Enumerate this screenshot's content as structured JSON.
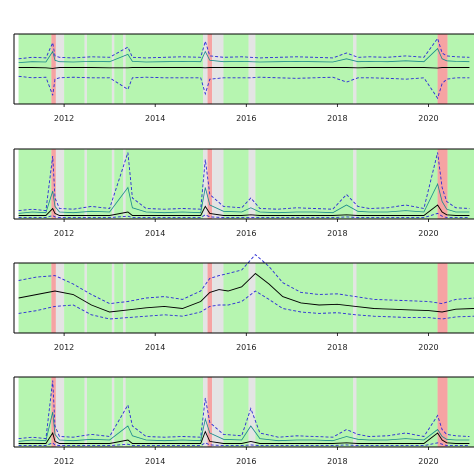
{
  "chart_data": {
    "type": "line",
    "xlim": [
      2010.9,
      2021.0
    ],
    "xticks": [
      "2012",
      "2014",
      "2016",
      "2018",
      "2020"
    ],
    "xtick_values": [
      2012,
      2014,
      2016,
      2018,
      2020
    ],
    "colors": {
      "regime_normal": "#b6f5b0",
      "regime_stress": "#f6a3a3",
      "regime_neutral": "#e4e4e4",
      "median_line": "#000000",
      "upper_band": "#2b2bd6",
      "lower_band": "#2b2bd6",
      "extra_band": "#1a8a8a",
      "frame": "#000000"
    },
    "regimes": [
      {
        "start": 2011.0,
        "end": 2011.72,
        "state": "normal"
      },
      {
        "start": 2011.72,
        "end": 2011.82,
        "state": "stress"
      },
      {
        "start": 2011.82,
        "end": 2012.0,
        "state": "neutral"
      },
      {
        "start": 2012.0,
        "end": 2012.45,
        "state": "normal"
      },
      {
        "start": 2012.45,
        "end": 2012.5,
        "state": "neutral"
      },
      {
        "start": 2012.5,
        "end": 2013.05,
        "state": "normal"
      },
      {
        "start": 2013.05,
        "end": 2013.1,
        "state": "neutral"
      },
      {
        "start": 2013.1,
        "end": 2013.3,
        "state": "normal"
      },
      {
        "start": 2013.3,
        "end": 2013.35,
        "state": "neutral"
      },
      {
        "start": 2013.35,
        "end": 2015.05,
        "state": "normal"
      },
      {
        "start": 2015.05,
        "end": 2015.15,
        "state": "neutral"
      },
      {
        "start": 2015.15,
        "end": 2015.25,
        "state": "stress"
      },
      {
        "start": 2015.25,
        "end": 2015.5,
        "state": "neutral"
      },
      {
        "start": 2015.5,
        "end": 2016.05,
        "state": "normal"
      },
      {
        "start": 2016.05,
        "end": 2016.2,
        "state": "neutral"
      },
      {
        "start": 2016.2,
        "end": 2018.35,
        "state": "normal"
      },
      {
        "start": 2018.35,
        "end": 2018.42,
        "state": "neutral"
      },
      {
        "start": 2018.42,
        "end": 2020.2,
        "state": "normal"
      },
      {
        "start": 2020.2,
        "end": 2020.42,
        "state": "stress"
      },
      {
        "start": 2020.42,
        "end": 2021.0,
        "state": "normal"
      }
    ],
    "panels": [
      {
        "ylim": [
          -1.2,
          1.2
        ],
        "x": [
          2011.0,
          2011.3,
          2011.6,
          2011.75,
          2011.8,
          2011.9,
          2012.2,
          2012.6,
          2013.0,
          2013.4,
          2013.5,
          2013.8,
          2014.2,
          2014.6,
          2015.0,
          2015.1,
          2015.2,
          2015.5,
          2015.9,
          2016.1,
          2016.3,
          2016.7,
          2017.1,
          2017.5,
          2017.9,
          2018.2,
          2018.45,
          2018.7,
          2019.1,
          2019.5,
          2019.9,
          2020.2,
          2020.3,
          2020.4,
          2020.6,
          2020.9
        ],
        "median": [
          0.05,
          0.05,
          0.04,
          0.02,
          0.03,
          0.05,
          0.05,
          0.05,
          0.04,
          0.04,
          0.05,
          0.05,
          0.05,
          0.05,
          0.05,
          0.04,
          0.05,
          0.05,
          0.05,
          0.05,
          0.05,
          0.05,
          0.05,
          0.05,
          0.05,
          0.05,
          0.04,
          0.05,
          0.05,
          0.05,
          0.05,
          0.03,
          0.05,
          0.05,
          0.05,
          0.05
        ],
        "upper": [
          0.35,
          0.4,
          0.38,
          0.9,
          0.45,
          0.4,
          0.38,
          0.42,
          0.4,
          0.75,
          0.4,
          0.38,
          0.4,
          0.42,
          0.4,
          0.95,
          0.45,
          0.4,
          0.42,
          0.4,
          0.38,
          0.4,
          0.42,
          0.4,
          0.38,
          0.55,
          0.4,
          0.42,
          0.4,
          0.45,
          0.4,
          1.05,
          0.55,
          0.45,
          0.42,
          0.4
        ],
        "lower": [
          -0.25,
          -0.3,
          -0.28,
          -0.9,
          -0.35,
          -0.3,
          -0.28,
          -0.3,
          -0.3,
          -0.7,
          -0.3,
          -0.28,
          -0.3,
          -0.3,
          -0.3,
          -0.85,
          -0.35,
          -0.3,
          -0.3,
          -0.3,
          -0.28,
          -0.3,
          -0.32,
          -0.3,
          -0.28,
          -0.45,
          -0.3,
          -0.3,
          -0.32,
          -0.35,
          -0.3,
          -1.0,
          -0.5,
          -0.35,
          -0.3,
          -0.3
        ],
        "extra": [
          0.22,
          0.25,
          0.24,
          0.6,
          0.3,
          0.25,
          0.24,
          0.26,
          0.25,
          0.5,
          0.26,
          0.24,
          0.25,
          0.26,
          0.25,
          0.6,
          0.3,
          0.25,
          0.26,
          0.25,
          0.24,
          0.25,
          0.26,
          0.25,
          0.24,
          0.35,
          0.25,
          0.26,
          0.25,
          0.28,
          0.25,
          0.7,
          0.35,
          0.28,
          0.26,
          0.25
        ]
      },
      {
        "ylim": [
          0,
          1
        ],
        "x": [
          2011.0,
          2011.3,
          2011.6,
          2011.75,
          2011.8,
          2011.9,
          2012.2,
          2012.6,
          2013.0,
          2013.4,
          2013.5,
          2013.8,
          2014.2,
          2014.6,
          2015.0,
          2015.1,
          2015.2,
          2015.5,
          2015.9,
          2016.1,
          2016.3,
          2016.7,
          2017.1,
          2017.5,
          2017.9,
          2018.2,
          2018.45,
          2018.7,
          2019.1,
          2019.5,
          2019.9,
          2020.2,
          2020.3,
          2020.4,
          2020.6,
          2020.9
        ],
        "median": [
          0.05,
          0.05,
          0.05,
          0.15,
          0.08,
          0.05,
          0.05,
          0.05,
          0.05,
          0.1,
          0.05,
          0.05,
          0.05,
          0.05,
          0.05,
          0.18,
          0.08,
          0.05,
          0.05,
          0.06,
          0.05,
          0.05,
          0.05,
          0.05,
          0.05,
          0.06,
          0.05,
          0.05,
          0.05,
          0.05,
          0.05,
          0.2,
          0.1,
          0.06,
          0.05,
          0.05
        ],
        "upper": [
          0.12,
          0.14,
          0.12,
          0.9,
          0.3,
          0.15,
          0.14,
          0.18,
          0.15,
          0.95,
          0.3,
          0.15,
          0.14,
          0.15,
          0.14,
          0.85,
          0.35,
          0.18,
          0.16,
          0.3,
          0.15,
          0.14,
          0.16,
          0.15,
          0.14,
          0.35,
          0.18,
          0.15,
          0.16,
          0.2,
          0.15,
          0.95,
          0.45,
          0.25,
          0.16,
          0.15
        ],
        "lower": [
          0.02,
          0.02,
          0.02,
          0.05,
          0.03,
          0.02,
          0.02,
          0.02,
          0.02,
          0.04,
          0.02,
          0.02,
          0.02,
          0.02,
          0.02,
          0.06,
          0.03,
          0.02,
          0.02,
          0.02,
          0.02,
          0.02,
          0.02,
          0.02,
          0.02,
          0.03,
          0.02,
          0.02,
          0.02,
          0.02,
          0.02,
          0.08,
          0.04,
          0.02,
          0.02,
          0.02
        ],
        "extra": [
          0.08,
          0.1,
          0.09,
          0.4,
          0.18,
          0.1,
          0.09,
          0.11,
          0.1,
          0.45,
          0.16,
          0.1,
          0.09,
          0.1,
          0.09,
          0.45,
          0.2,
          0.11,
          0.1,
          0.16,
          0.1,
          0.09,
          0.1,
          0.1,
          0.09,
          0.2,
          0.11,
          0.1,
          0.1,
          0.12,
          0.1,
          0.5,
          0.25,
          0.14,
          0.1,
          0.1
        ]
      },
      {
        "ylim": [
          0,
          1
        ],
        "x": [
          2011.0,
          2011.4,
          2011.8,
          2012.2,
          2012.6,
          2013.0,
          2013.4,
          2013.8,
          2014.2,
          2014.6,
          2015.0,
          2015.2,
          2015.4,
          2015.6,
          2015.9,
          2016.2,
          2016.5,
          2016.8,
          2017.2,
          2017.6,
          2018.0,
          2018.4,
          2018.8,
          2019.2,
          2019.6,
          2020.0,
          2020.3,
          2020.6,
          2021.0
        ],
        "median": [
          0.5,
          0.55,
          0.6,
          0.55,
          0.4,
          0.3,
          0.33,
          0.36,
          0.38,
          0.35,
          0.45,
          0.58,
          0.62,
          0.6,
          0.66,
          0.85,
          0.7,
          0.52,
          0.43,
          0.4,
          0.41,
          0.38,
          0.35,
          0.34,
          0.33,
          0.32,
          0.3,
          0.34,
          0.35
        ],
        "upper": [
          0.75,
          0.8,
          0.82,
          0.7,
          0.55,
          0.42,
          0.45,
          0.5,
          0.52,
          0.48,
          0.6,
          0.78,
          0.82,
          0.85,
          0.9,
          1.12,
          0.95,
          0.72,
          0.58,
          0.55,
          0.56,
          0.52,
          0.48,
          0.47,
          0.46,
          0.45,
          0.42,
          0.48,
          0.5
        ],
        "lower": [
          0.28,
          0.32,
          0.38,
          0.4,
          0.26,
          0.2,
          0.22,
          0.24,
          0.26,
          0.24,
          0.3,
          0.38,
          0.4,
          0.4,
          0.45,
          0.6,
          0.48,
          0.35,
          0.3,
          0.28,
          0.29,
          0.26,
          0.24,
          0.23,
          0.22,
          0.22,
          0.2,
          0.23,
          0.24
        ],
        "extra": []
      },
      {
        "ylim": [
          0,
          1
        ],
        "x": [
          2011.0,
          2011.3,
          2011.6,
          2011.75,
          2011.8,
          2011.9,
          2012.2,
          2012.6,
          2013.0,
          2013.4,
          2013.5,
          2013.8,
          2014.2,
          2014.6,
          2015.0,
          2015.1,
          2015.2,
          2015.5,
          2015.9,
          2016.1,
          2016.3,
          2016.7,
          2017.1,
          2017.5,
          2017.9,
          2018.2,
          2018.45,
          2018.7,
          2019.1,
          2019.5,
          2019.9,
          2020.2,
          2020.3,
          2020.4,
          2020.6,
          2020.9
        ],
        "median": [
          0.05,
          0.05,
          0.05,
          0.2,
          0.08,
          0.05,
          0.05,
          0.05,
          0.05,
          0.1,
          0.05,
          0.05,
          0.05,
          0.05,
          0.05,
          0.22,
          0.08,
          0.05,
          0.05,
          0.08,
          0.05,
          0.05,
          0.05,
          0.05,
          0.05,
          0.06,
          0.05,
          0.05,
          0.05,
          0.05,
          0.05,
          0.2,
          0.1,
          0.06,
          0.05,
          0.05
        ],
        "upper": [
          0.12,
          0.14,
          0.12,
          0.95,
          0.3,
          0.15,
          0.14,
          0.18,
          0.15,
          0.6,
          0.3,
          0.15,
          0.14,
          0.15,
          0.14,
          0.7,
          0.35,
          0.18,
          0.16,
          0.55,
          0.2,
          0.14,
          0.16,
          0.15,
          0.14,
          0.25,
          0.18,
          0.15,
          0.16,
          0.2,
          0.15,
          0.45,
          0.25,
          0.18,
          0.16,
          0.15
        ],
        "lower": [
          0.02,
          0.02,
          0.02,
          0.06,
          0.03,
          0.02,
          0.02,
          0.02,
          0.02,
          0.04,
          0.02,
          0.02,
          0.02,
          0.02,
          0.02,
          0.06,
          0.03,
          0.02,
          0.02,
          0.03,
          0.02,
          0.02,
          0.02,
          0.02,
          0.02,
          0.03,
          0.02,
          0.02,
          0.02,
          0.02,
          0.02,
          0.06,
          0.04,
          0.02,
          0.02,
          0.02
        ],
        "extra": [
          0.08,
          0.1,
          0.09,
          0.5,
          0.18,
          0.1,
          0.09,
          0.11,
          0.1,
          0.3,
          0.16,
          0.1,
          0.09,
          0.1,
          0.09,
          0.4,
          0.2,
          0.11,
          0.1,
          0.3,
          0.12,
          0.09,
          0.1,
          0.1,
          0.09,
          0.15,
          0.11,
          0.1,
          0.1,
          0.12,
          0.1,
          0.25,
          0.15,
          0.11,
          0.1,
          0.1
        ]
      }
    ]
  }
}
